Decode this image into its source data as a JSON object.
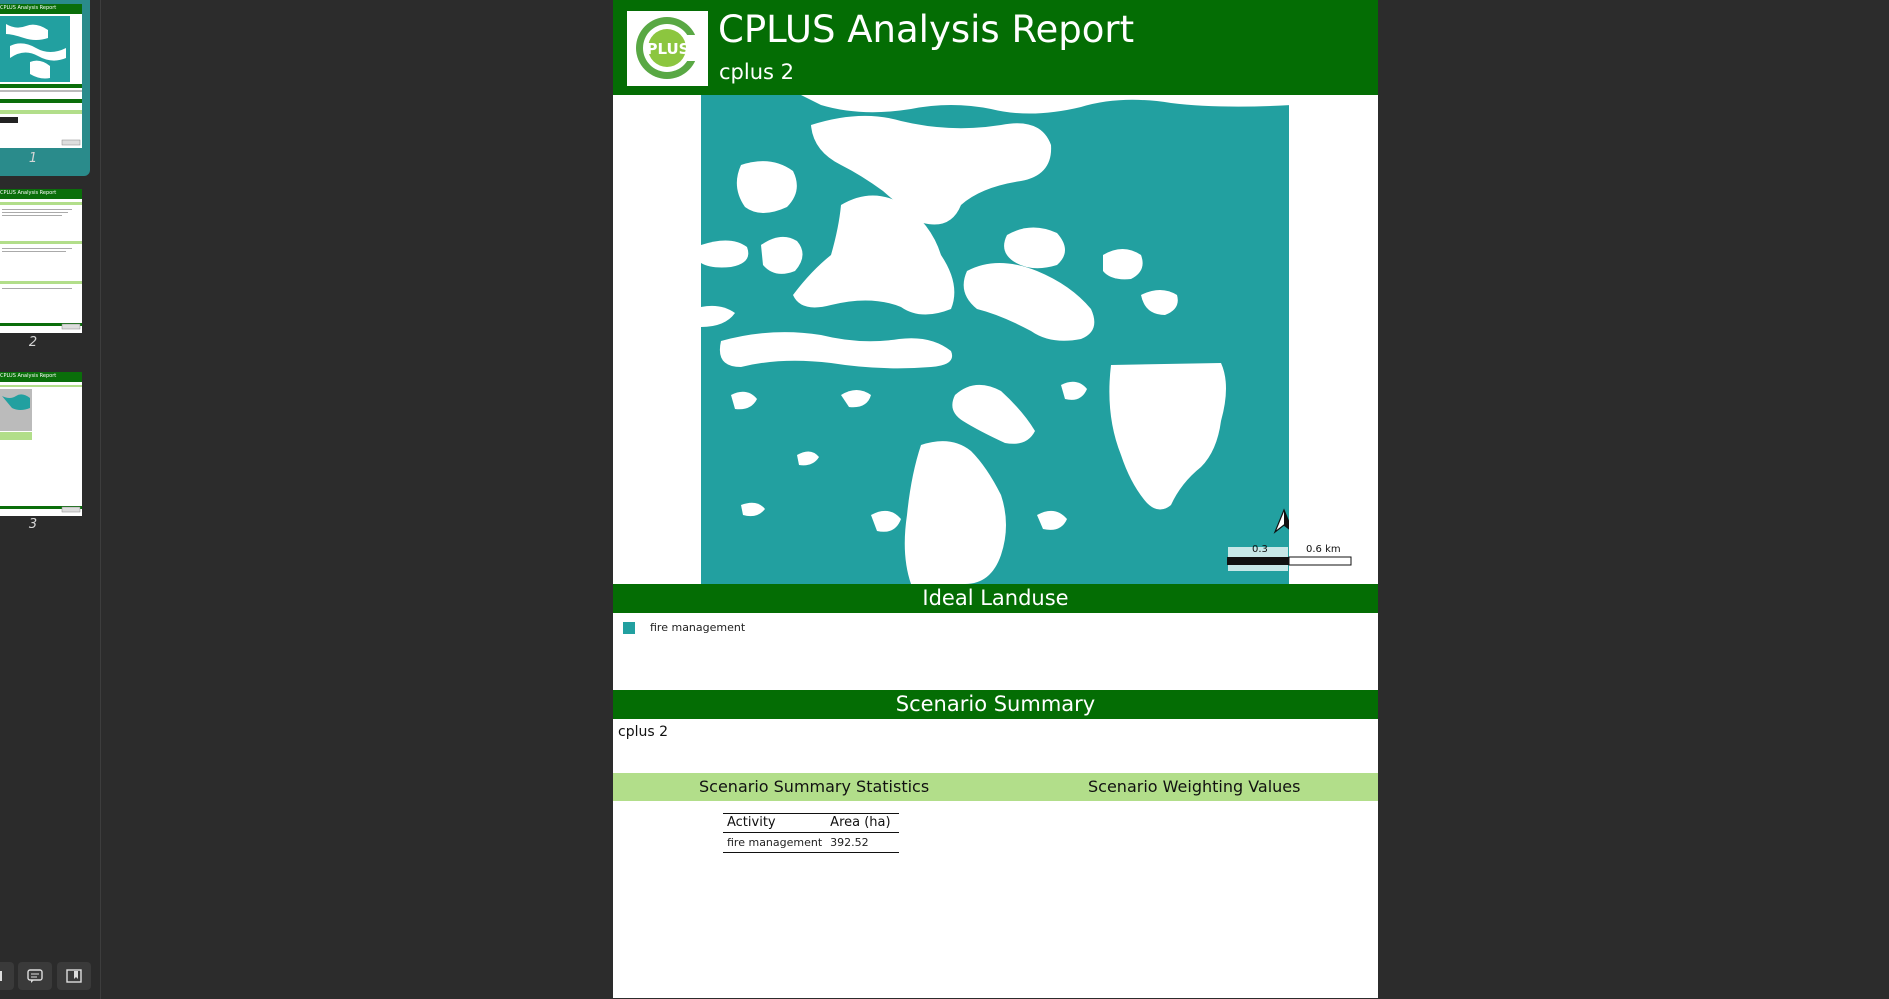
{
  "sidebar": {
    "thumbnails": [
      {
        "page_number": "1",
        "mini_title": "CPLUS Analysis Report",
        "selected": true
      },
      {
        "page_number": "2",
        "mini_title": "CPLUS Analysis Report",
        "selected": false
      },
      {
        "page_number": "3",
        "mini_title": "CPLUS Analysis Report",
        "selected": false
      }
    ],
    "footer_buttons": [
      "thumbnails-icon",
      "annotations-icon",
      "bookmarks-icon"
    ]
  },
  "report": {
    "title": "CPLUS Analysis Report",
    "subtitle": "cplus 2",
    "logo_text": "PLUS"
  },
  "map": {
    "landuse_color": "#22a0a0",
    "scale_bar": {
      "mid_label": "0.3",
      "end_label": "0.6 km"
    },
    "north_arrow": "north-arrow-icon"
  },
  "ideal_landuse": {
    "heading": "Ideal Landuse",
    "legend": [
      {
        "label": "fire management",
        "color": "#22a0a0"
      }
    ]
  },
  "scenario_summary": {
    "heading": "Scenario Summary",
    "text": "cplus 2"
  },
  "statistics": {
    "left_heading": "Scenario Summary Statistics",
    "right_heading": "Scenario Weighting Values",
    "columns": [
      "Activity",
      "Area (ha)"
    ],
    "rows": [
      [
        "fire management",
        "392.52"
      ]
    ]
  },
  "colors": {
    "header_green": "#046d04",
    "light_green": "#b2de8a",
    "selection_teal": "#2a8b8b"
  }
}
